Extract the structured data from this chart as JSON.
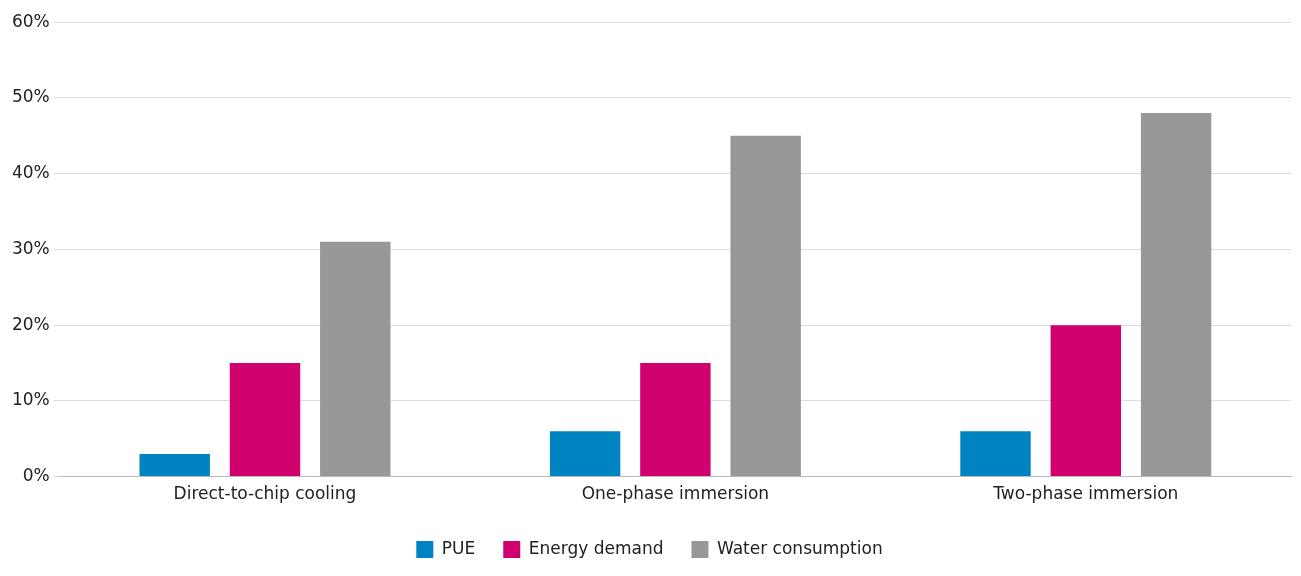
{
  "chart_data": {
    "type": "bar",
    "categories": [
      "Direct-to-chip cooling",
      "One-phase immersion",
      "Two-phase immersion"
    ],
    "series": [
      {
        "name": "PUE",
        "color": "#0083c1",
        "values": [
          3,
          6,
          6
        ]
      },
      {
        "name": "Energy demand",
        "color": "#d0006f",
        "values": [
          15,
          15,
          20
        ]
      },
      {
        "name": "Water consumption",
        "color": "#98989a",
        "values": [
          31,
          45,
          48
        ]
      }
    ],
    "ylim": [
      0,
      60
    ],
    "yticks": [
      {
        "value": 0,
        "label": "0%"
      },
      {
        "value": 10,
        "label": "10%"
      },
      {
        "value": 20,
        "label": "20%"
      },
      {
        "value": 30,
        "label": "30%"
      },
      {
        "value": 40,
        "label": "40%"
      },
      {
        "value": 50,
        "label": "50%"
      },
      {
        "value": 60,
        "label": "60%"
      }
    ],
    "grid": "y",
    "legend": "bottom"
  }
}
